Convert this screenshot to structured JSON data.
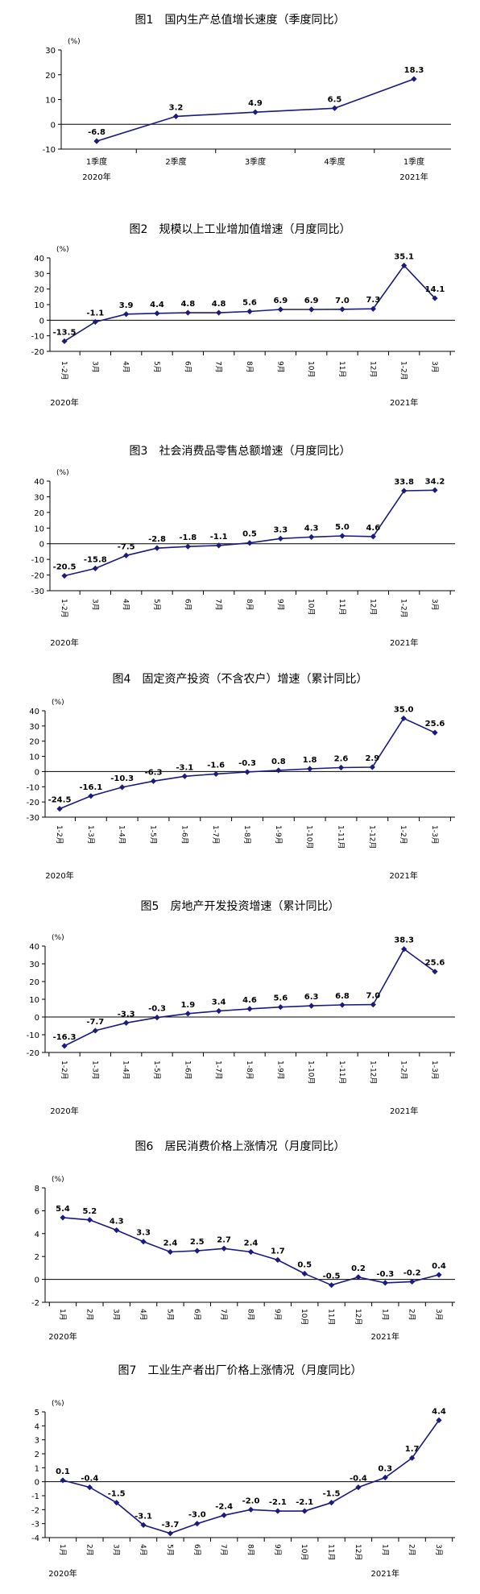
{
  "line_color": "#1a1a80",
  "chart_data": [
    {
      "type": "line",
      "title": "图1　国内生产总值增长速度（季度同比）",
      "unit": "(%)",
      "ylim": [
        -10,
        30
      ],
      "yticks": [
        -10,
        0,
        10,
        20,
        30
      ],
      "categories": [
        "1季度",
        "2季度",
        "3季度",
        "4季度",
        "1季度"
      ],
      "year_labels": [
        "2020年",
        "",
        "",
        "",
        "2021年"
      ],
      "values": [
        -6.8,
        3.2,
        4.9,
        6.5,
        18.3
      ],
      "labels": [
        "-6.8",
        "3.2",
        "4.9",
        "6.5",
        "18.3"
      ]
    },
    {
      "type": "line",
      "title": "图2　规模以上工业增加值增速（月度同比）",
      "unit": "(%)",
      "ylim": [
        -20,
        40
      ],
      "yticks": [
        -20,
        -10,
        0,
        10,
        20,
        30,
        40
      ],
      "categories": [
        "1-2月",
        "3月",
        "4月",
        "5月",
        "6月",
        "7月",
        "8月",
        "9月",
        "10月",
        "11月",
        "12月",
        "1-2月",
        "3月"
      ],
      "year_labels": [
        "2020年",
        "",
        "",
        "",
        "",
        "",
        "",
        "",
        "",
        "",
        "",
        "2021年",
        ""
      ],
      "values": [
        -13.5,
        -1.1,
        3.9,
        4.4,
        4.8,
        4.8,
        5.6,
        6.9,
        6.9,
        7.0,
        7.3,
        35.1,
        14.1
      ],
      "labels": [
        "-13.5",
        "-1.1",
        "3.9",
        "4.4",
        "4.8",
        "4.8",
        "5.6",
        "6.9",
        "6.9",
        "7.0",
        "7.3",
        "35.1",
        "14.1"
      ]
    },
    {
      "type": "line",
      "title": "图3　社会消费品零售总额增速（月度同比）",
      "unit": "(%)",
      "ylim": [
        -30,
        40
      ],
      "yticks": [
        -30,
        -20,
        -10,
        0,
        10,
        20,
        30,
        40
      ],
      "categories": [
        "1-2月",
        "3月",
        "4月",
        "5月",
        "6月",
        "7月",
        "8月",
        "9月",
        "10月",
        "11月",
        "12月",
        "1-2月",
        "3月"
      ],
      "year_labels": [
        "2020年",
        "",
        "",
        "",
        "",
        "",
        "",
        "",
        "",
        "",
        "",
        "2021年",
        ""
      ],
      "values": [
        -20.5,
        -15.8,
        -7.5,
        -2.8,
        -1.8,
        -1.1,
        0.5,
        3.3,
        4.3,
        5.0,
        4.6,
        33.8,
        34.2
      ],
      "labels": [
        "-20.5",
        "-15.8",
        "-7.5",
        "-2.8",
        "-1.8",
        "-1.1",
        "0.5",
        "3.3",
        "4.3",
        "5.0",
        "4.6",
        "33.8",
        "34.2"
      ]
    },
    {
      "type": "line",
      "title": "图4　固定资产投资（不含农户）增速（累计同比）",
      "unit": "(%)",
      "ylim": [
        -30,
        40
      ],
      "yticks": [
        -30,
        -20,
        -10,
        0,
        10,
        20,
        30,
        40
      ],
      "categories": [
        "1-2月",
        "1-3月",
        "1-4月",
        "1-5月",
        "1-6月",
        "1-7月",
        "1-8月",
        "1-9月",
        "1-10月",
        "1-11月",
        "1-12月",
        "1-2月",
        "1-3月"
      ],
      "year_labels": [
        "2020年",
        "",
        "",
        "",
        "",
        "",
        "",
        "",
        "",
        "",
        "",
        "2021年",
        ""
      ],
      "values": [
        -24.5,
        -16.1,
        -10.3,
        -6.3,
        -3.1,
        -1.6,
        -0.3,
        0.8,
        1.8,
        2.6,
        2.9,
        35.0,
        25.6
      ],
      "labels": [
        "-24.5",
        "-16.1",
        "-10.3",
        "-6.3",
        "-3.1",
        "-1.6",
        "-0.3",
        "0.8",
        "1.8",
        "2.6",
        "2.9",
        "35.0",
        "25.6"
      ]
    },
    {
      "type": "line",
      "title": "图5　房地产开发投资增速（累计同比）",
      "unit": "(%)",
      "ylim": [
        -20,
        40
      ],
      "yticks": [
        -20,
        -10,
        0,
        10,
        20,
        30,
        40
      ],
      "categories": [
        "1-2月",
        "1-3月",
        "1-4月",
        "1-5月",
        "1-6月",
        "1-7月",
        "1-8月",
        "1-9月",
        "1-10月",
        "1-11月",
        "1-12月",
        "1-2月",
        "1-3月"
      ],
      "year_labels": [
        "2020年",
        "",
        "",
        "",
        "",
        "",
        "",
        "",
        "",
        "",
        "",
        "2021年",
        ""
      ],
      "values": [
        -16.3,
        -7.7,
        -3.3,
        -0.3,
        1.9,
        3.4,
        4.6,
        5.6,
        6.3,
        6.8,
        7.0,
        38.3,
        25.6
      ],
      "labels": [
        "-16.3",
        "-7.7",
        "-3.3",
        "-0.3",
        "1.9",
        "3.4",
        "4.6",
        "5.6",
        "6.3",
        "6.8",
        "7.0",
        "38.3",
        "25.6"
      ]
    },
    {
      "type": "line",
      "title": "图6　居民消费价格上涨情况（月度同比）",
      "unit": "(%)",
      "ylim": [
        -2,
        8
      ],
      "yticks": [
        -2,
        0,
        2,
        4,
        6,
        8
      ],
      "categories": [
        "1月",
        "2月",
        "3月",
        "4月",
        "5月",
        "6月",
        "7月",
        "8月",
        "9月",
        "10月",
        "11月",
        "12月",
        "1月",
        "2月",
        "3月"
      ],
      "year_labels": [
        "2020年",
        "",
        "",
        "",
        "",
        "",
        "",
        "",
        "",
        "",
        "",
        "",
        "2021年",
        "",
        ""
      ],
      "values": [
        5.4,
        5.2,
        4.3,
        3.3,
        2.4,
        2.5,
        2.7,
        2.4,
        1.7,
        0.5,
        -0.5,
        0.2,
        -0.3,
        -0.2,
        0.4
      ],
      "labels": [
        "5.4",
        "5.2",
        "4.3",
        "3.3",
        "2.4",
        "2.5",
        "2.7",
        "2.4",
        "1.7",
        "0.5",
        "-0.5",
        "0.2",
        "-0.3",
        "-0.2",
        "0.4"
      ]
    },
    {
      "type": "line",
      "title": "图7　工业生产者出厂价格上涨情况（月度同比）",
      "unit": "(%)",
      "ylim": [
        -4,
        5
      ],
      "yticks": [
        -4,
        -3,
        -2,
        -1,
        0,
        1,
        2,
        3,
        4,
        5
      ],
      "categories": [
        "1月",
        "2月",
        "3月",
        "4月",
        "5月",
        "6月",
        "7月",
        "8月",
        "9月",
        "10月",
        "11月",
        "12月",
        "1月",
        "2月",
        "3月"
      ],
      "year_labels": [
        "2020年",
        "",
        "",
        "",
        "",
        "",
        "",
        "",
        "",
        "",
        "",
        "",
        "2021年",
        "",
        ""
      ],
      "values": [
        0.1,
        -0.4,
        -1.5,
        -3.1,
        -3.7,
        -3.0,
        -2.4,
        -2.0,
        -2.1,
        -2.1,
        -1.5,
        -0.4,
        0.3,
        1.7,
        4.4
      ],
      "labels": [
        "0.1",
        "-0.4",
        "-1.5",
        "-3.1",
        "-3.7",
        "-3.0",
        "-2.4",
        "-2.0",
        "-2.1",
        "-2.1",
        "-1.5",
        "-0.4",
        "0.3",
        "1.7",
        "4.4"
      ]
    }
  ]
}
